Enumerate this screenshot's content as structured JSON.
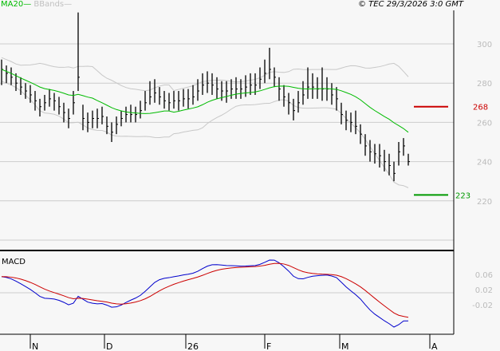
{
  "header": {
    "copyright": "© TEC 29/3/2026 3:0 GMT"
  },
  "legend": [
    {
      "label": "MA20",
      "color": "#00bb00"
    },
    {
      "label": "BBands",
      "color": "#c0c0c0"
    }
  ],
  "chart_data": {
    "type": "ohlc",
    "price_axis": {
      "ticks": [
        "300",
        "280",
        "260",
        "240",
        "220"
      ],
      "range": [
        196,
        322
      ]
    },
    "macd_panel": {
      "label": "MACD",
      "ticks": [
        "0.06",
        "0.02",
        "-0.02"
      ]
    },
    "x_ticks": [
      "N",
      "D",
      "26",
      "F",
      "M",
      "A"
    ],
    "levels": [
      {
        "value": "268",
        "color": "#cc0000"
      },
      {
        "value": "223",
        "color": "#009900"
      }
    ],
    "bars": [
      [
        292,
        279,
        287
      ],
      [
        289,
        280,
        285
      ],
      [
        288,
        279,
        283
      ],
      [
        285,
        276,
        280
      ],
      [
        283,
        274,
        278
      ],
      [
        280,
        272,
        276
      ],
      [
        279,
        270,
        274
      ],
      [
        276,
        266,
        271
      ],
      [
        272,
        263,
        268
      ],
      [
        274,
        266,
        270
      ],
      [
        277,
        268,
        272
      ],
      [
        275,
        266,
        271
      ],
      [
        273,
        264,
        268
      ],
      [
        270,
        260,
        265
      ],
      [
        267,
        257,
        262
      ],
      [
        276,
        264,
        270
      ],
      [
        316,
        276,
        283
      ],
      [
        269,
        256,
        262
      ],
      [
        265,
        255,
        260
      ],
      [
        266,
        257,
        262
      ],
      [
        267,
        257,
        262
      ],
      [
        268,
        259,
        263
      ],
      [
        263,
        254,
        258
      ],
      [
        260,
        250,
        255
      ],
      [
        263,
        254,
        259
      ],
      [
        266,
        258,
        262
      ],
      [
        268,
        260,
        264
      ],
      [
        269,
        260,
        264
      ],
      [
        268,
        260,
        264
      ],
      [
        271,
        262,
        266
      ],
      [
        276,
        266,
        270
      ],
      [
        281,
        269,
        273
      ],
      [
        282,
        270,
        275
      ],
      [
        278,
        269,
        273
      ],
      [
        276,
        267,
        271
      ],
      [
        275,
        266,
        270
      ],
      [
        276,
        267,
        271
      ],
      [
        276,
        266,
        271
      ],
      [
        277,
        268,
        272
      ],
      [
        277,
        267,
        272
      ],
      [
        279,
        269,
        273
      ],
      [
        282,
        271,
        276
      ],
      [
        285,
        274,
        279
      ],
      [
        286,
        275,
        280
      ],
      [
        285,
        274,
        279
      ],
      [
        283,
        272,
        277
      ],
      [
        281,
        271,
        276
      ],
      [
        281,
        270,
        276
      ],
      [
        282,
        272,
        277
      ],
      [
        283,
        272,
        277
      ],
      [
        282,
        272,
        277
      ],
      [
        284,
        273,
        278
      ],
      [
        285,
        274,
        279
      ],
      [
        285,
        274,
        279
      ],
      [
        288,
        277,
        282
      ],
      [
        292,
        280,
        285
      ],
      [
        298,
        282,
        287
      ],
      [
        288,
        278,
        283
      ],
      [
        283,
        271,
        277
      ],
      [
        279,
        268,
        273
      ],
      [
        275,
        264,
        270
      ],
      [
        272,
        261,
        266
      ],
      [
        276,
        265,
        270
      ],
      [
        281,
        269,
        274
      ],
      [
        288,
        272,
        278
      ],
      [
        285,
        272,
        278
      ],
      [
        283,
        272,
        277
      ],
      [
        288,
        271,
        277
      ],
      [
        283,
        271,
        277
      ],
      [
        280,
        269,
        274
      ],
      [
        278,
        266,
        272
      ],
      [
        270,
        259,
        264
      ],
      [
        266,
        256,
        261
      ],
      [
        265,
        255,
        260
      ],
      [
        266,
        254,
        258
      ],
      [
        259,
        249,
        254
      ],
      [
        254,
        243,
        248
      ],
      [
        251,
        240,
        245
      ],
      [
        249,
        239,
        244
      ],
      [
        249,
        237,
        243
      ],
      [
        246,
        235,
        240
      ],
      [
        244,
        233,
        238
      ],
      [
        240,
        230,
        234
      ],
      [
        250,
        238,
        245
      ],
      [
        252,
        243,
        248
      ],
      [
        244,
        238,
        240
      ]
    ]
  }
}
